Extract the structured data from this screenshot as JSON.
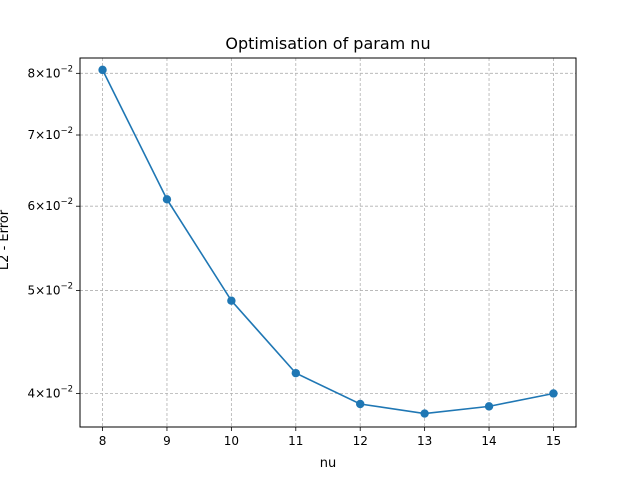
{
  "chart_data": {
    "type": "line",
    "title": "Optimisation of param nu",
    "xlabel": "nu",
    "ylabel": "L2 - Error",
    "yscale": "log",
    "grid": true,
    "xlim": [
      7.65,
      15.35
    ],
    "ylim": [
      0.0372,
      0.0827
    ],
    "x_ticks": [
      8,
      9,
      10,
      11,
      12,
      13,
      14,
      15
    ],
    "x_tick_labels": [
      "8",
      "9",
      "10",
      "11",
      "12",
      "13",
      "14",
      "15"
    ],
    "y_ticks": [
      {
        "value": 0.04,
        "mantissa": "4",
        "base": "10",
        "exponent": "−2"
      },
      {
        "value": 0.05,
        "mantissa": "5",
        "base": "10",
        "exponent": "−2"
      },
      {
        "value": 0.06,
        "mantissa": "6",
        "base": "10",
        "exponent": "−2"
      },
      {
        "value": 0.07,
        "mantissa": "7",
        "base": "10",
        "exponent": "−2"
      },
      {
        "value": 0.08,
        "mantissa": "8",
        "base": "10",
        "exponent": "−2"
      }
    ],
    "series": [
      {
        "color": "#1f77b4",
        "x": [
          8,
          9,
          10,
          11,
          12,
          13,
          14,
          15
        ],
        "y": [
          0.0806,
          0.0609,
          0.0489,
          0.0418,
          0.0391,
          0.0383,
          0.0389,
          0.04
        ]
      }
    ]
  }
}
